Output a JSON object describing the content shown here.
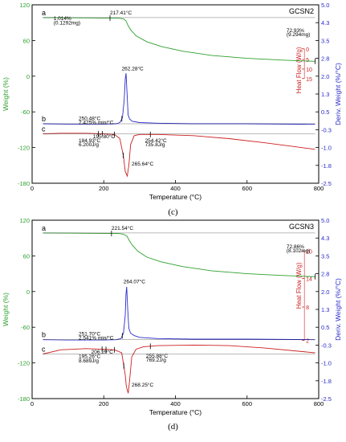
{
  "colors": {
    "weight": "#2ca02c",
    "deriv": "#2b2bcc",
    "heat": "#cc2020",
    "frame": "#000000",
    "caption": "#000000"
  },
  "axis_labels": {
    "x": "Temperature (°C)",
    "y_left": "Weight (%)",
    "y_right": "Deriv. Weight (%/°C)",
    "heat_flow": "Heat Flow (W/g)"
  },
  "chart_data": [
    {
      "type": "line",
      "title": "GCSN2",
      "caption": "(c)",
      "xlim": [
        0,
        800
      ],
      "ylim_weight": [
        -180,
        120
      ],
      "ylim_deriv": [
        -2.5,
        5.0
      ],
      "x_ticks": [
        "0",
        "200",
        "400",
        "600",
        "800"
      ],
      "weight_ticks": [
        "120",
        "60",
        "0",
        "-60",
        "-120",
        "-180"
      ],
      "deriv_ticks": [
        "5.0",
        "4.3",
        "3.5",
        "2.8",
        "2.0",
        "1.3",
        "0.5",
        "-0.3",
        "-1.0",
        "-1.8",
        "-2.5"
      ],
      "deriv_tick_values": [
        5.0,
        4.25,
        3.5,
        2.75,
        2.0,
        1.25,
        0.5,
        -0.25,
        -1.0,
        -1.75,
        -2.5
      ],
      "heat_ticks": [
        "15",
        "10",
        "5",
        "0"
      ],
      "heat_tick_y": [
        -4,
        12,
        28,
        46
      ],
      "curve_letters": [
        "a",
        "b",
        "c"
      ],
      "series": [
        {
          "name": "a",
          "color": "#2ca02c",
          "x": [
            30,
            100,
            200,
            240,
            255,
            262,
            268,
            275,
            290,
            320,
            360,
            420,
            500,
            600,
            700,
            790
          ],
          "y": [
            98.5,
            98.2,
            97.8,
            97.5,
            96.5,
            93,
            85,
            78,
            68,
            58,
            50,
            42,
            35,
            30,
            27,
            25
          ]
        },
        {
          "name": "b",
          "color": "#2b2bcc",
          "x": [
            30,
            100,
            200,
            235,
            245,
            252,
            257,
            260,
            262.28,
            265,
            268,
            272,
            280,
            300,
            350,
            450,
            600,
            790
          ],
          "y": [
            -80,
            -80.5,
            -80.5,
            -80,
            -78,
            -70,
            -40,
            -5,
            5,
            -30,
            -65,
            -72,
            -76,
            -78,
            -79,
            -80,
            -80,
            -81
          ]
        },
        {
          "name": "c",
          "color": "#cc2020",
          "x": [
            30,
            80,
            150,
            200,
            230,
            245,
            255,
            260,
            265.64,
            270,
            275,
            285,
            300,
            350,
            450,
            550,
            650,
            790
          ],
          "y": [
            -97,
            -96,
            -96,
            -97,
            -98,
            -105,
            -135,
            -160,
            -168,
            -150,
            -115,
            -100,
            -98,
            -98,
            -100,
            -105,
            -112,
            -123
          ]
        }
      ],
      "markers_x": [
        [
          217.41,
          790
        ],
        [
          250.48
        ],
        [
          184.93,
          195.8,
          230,
          254.42,
          330
        ]
      ],
      "annotations": [
        {
          "text": "217.41°C",
          "x": 217.41,
          "y": 104
        },
        {
          "text": "1.014%",
          "x": 60,
          "y": 94
        },
        {
          "text": "(0.1292mg)",
          "x": 60,
          "y": 87
        },
        {
          "text": "72.93%",
          "x": 710,
          "y": 74
        },
        {
          "text": "(9.294mg)",
          "x": 710,
          "y": 67
        },
        {
          "text": "262.28°C",
          "x": 250,
          "y": 10
        },
        {
          "text": "250.48°C",
          "x": 130,
          "y": -74
        },
        {
          "text": "2.425% min/°C",
          "x": 130,
          "y": -81
        },
        {
          "text": "195.80°C",
          "x": 170,
          "y": -104
        },
        {
          "text": "184.93°C",
          "x": 130,
          "y": -111
        },
        {
          "text": "6.200J/g",
          "x": 130,
          "y": -118
        },
        {
          "text": "254.42°C",
          "x": 315,
          "y": -111
        },
        {
          "text": "735.8J/g",
          "x": 315,
          "y": -118
        },
        {
          "text": "265.64°C",
          "x": 278,
          "y": -150
        }
      ]
    },
    {
      "type": "line",
      "title": "GCSN3",
      "caption": "(d)",
      "xlim": [
        0,
        800
      ],
      "ylim_weight": [
        -180,
        120
      ],
      "ylim_deriv": [
        -2.5,
        5.0
      ],
      "x_ticks": [
        "0",
        "200",
        "400",
        "600",
        "800"
      ],
      "weight_ticks": [
        "120",
        "60",
        "0",
        "-60",
        "-120",
        "-180"
      ],
      "deriv_ticks": [
        "5.0",
        "4.3",
        "3.5",
        "2.8",
        "2.0",
        "1.3",
        "0.5",
        "-0.3",
        "-1.0",
        "-1.8",
        "-2.5"
      ],
      "deriv_tick_values": [
        5.0,
        4.25,
        3.5,
        2.75,
        2.0,
        1.25,
        0.5,
        -0.25,
        -1.0,
        -1.75,
        -2.5
      ],
      "heat_ticks": [
        "20",
        "14",
        "8",
        "2"
      ],
      "heat_tick_y": [
        68,
        22,
        -26,
        -82
      ],
      "curve_letters": [
        "a",
        "b",
        "c"
      ],
      "series": [
        {
          "name": "a",
          "color": "#2ca02c",
          "x": [
            30,
            100,
            200,
            240,
            255,
            265,
            272,
            280,
            295,
            320,
            360,
            420,
            500,
            600,
            700,
            790
          ],
          "y": [
            98.5,
            98.2,
            97.8,
            97.5,
            96.5,
            93,
            85,
            78,
            68,
            58,
            50,
            42,
            35,
            30,
            27,
            25
          ]
        },
        {
          "name": "b",
          "color": "#2b2bcc",
          "x": [
            30,
            100,
            200,
            235,
            248,
            255,
            260,
            262,
            264.07,
            267,
            270,
            275,
            285,
            300,
            350,
            450,
            600,
            790
          ],
          "y": [
            -81,
            -81.5,
            -81.5,
            -81,
            -79,
            -70,
            -40,
            -5,
            8,
            -30,
            -62,
            -70,
            -74,
            -77,
            -79,
            -80,
            -80,
            -81
          ]
        },
        {
          "name": "c",
          "color": "#cc2020",
          "x": [
            30,
            80,
            150,
            200,
            230,
            250,
            260,
            263,
            268.25,
            272,
            278,
            290,
            310,
            350,
            450,
            550,
            650,
            790
          ],
          "y": [
            -105,
            -98,
            -96,
            -97,
            -98,
            -103,
            -140,
            -160,
            -171,
            -150,
            -110,
            -97,
            -93,
            -91,
            -90,
            -91,
            -95,
            -103
          ]
        }
      ],
      "markers_x": [
        [
          221.54,
          790
        ],
        [
          251.7
        ],
        [
          195.26,
          206.29,
          230,
          255.88,
          330
        ]
      ],
      "annotations": [
        {
          "text": "221.54°C",
          "x": 221.54,
          "y": 104
        },
        {
          "text": "72.86%",
          "x": 710,
          "y": 73
        },
        {
          "text": "(8.102mg)",
          "x": 710,
          "y": 66
        },
        {
          "text": "264.07°C",
          "x": 255,
          "y": 14
        },
        {
          "text": "251.70°C",
          "x": 130,
          "y": -74
        },
        {
          "text": "2.541% min/°C",
          "x": 130,
          "y": -81
        },
        {
          "text": "206.29°C",
          "x": 165,
          "y": -104
        },
        {
          "text": "195.26°C",
          "x": 130,
          "y": -112
        },
        {
          "text": "8.689J/g",
          "x": 130,
          "y": -119
        },
        {
          "text": "255.88°C",
          "x": 318,
          "y": -111
        },
        {
          "text": "769.2J/g",
          "x": 318,
          "y": -118
        },
        {
          "text": "268.25°C",
          "x": 278,
          "y": -160
        }
      ]
    }
  ]
}
